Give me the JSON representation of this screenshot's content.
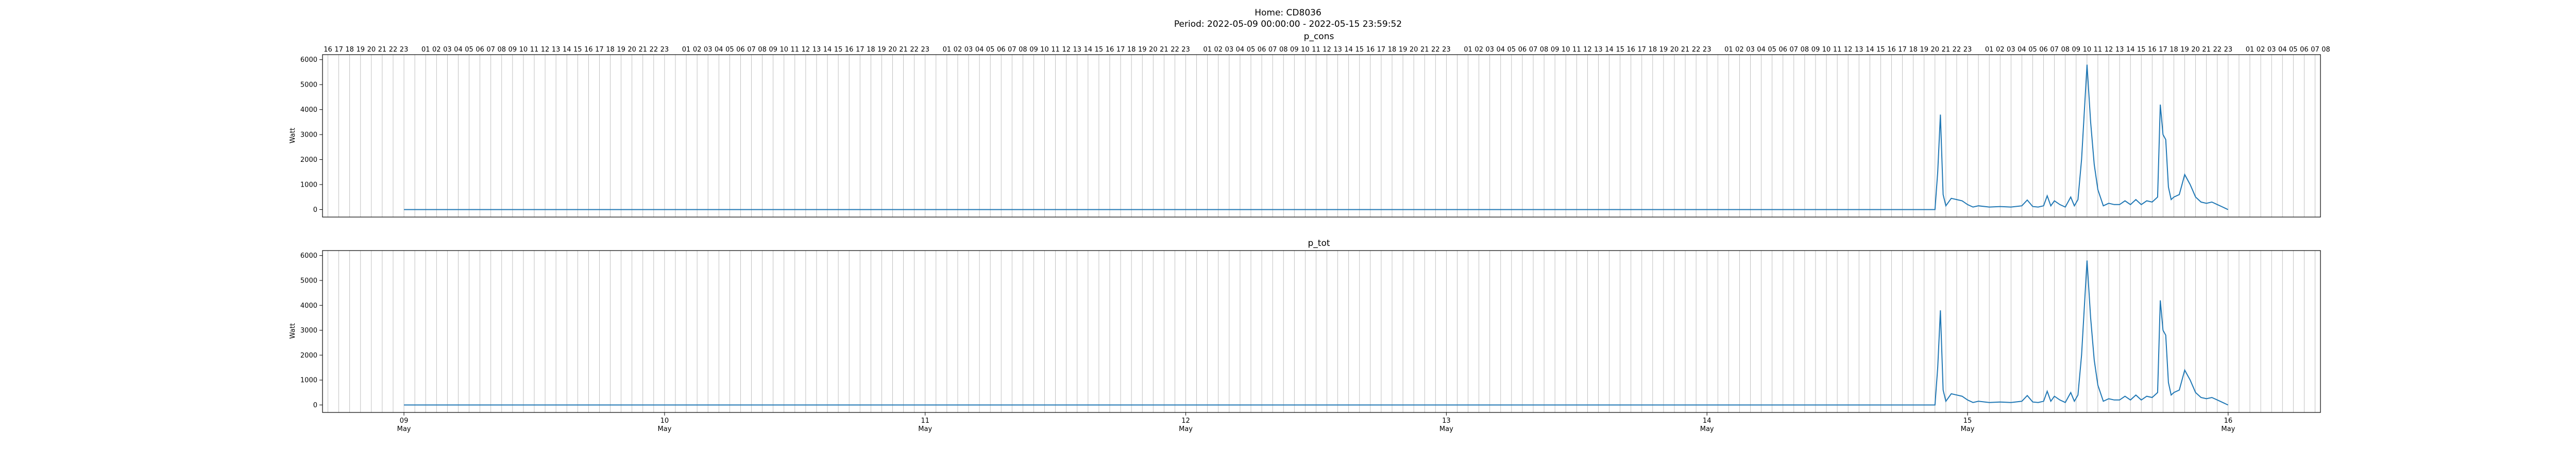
{
  "figure": {
    "title": "Home: CD8036",
    "subtitle": "Period: 2022-05-09 00:00:00 - 2022-05-15 23:59:52"
  },
  "colors": {
    "line": "#1f77b4",
    "grid": "#b0b0b0",
    "axis": "#000000"
  },
  "chart_data": [
    {
      "type": "line",
      "title": "p_cons",
      "ylabel": "Watt",
      "xlim": [
        "2022-05-08 16:30",
        "2022-05-16 08:30"
      ],
      "ylim": [
        -300,
        6200
      ],
      "yticks": [
        0,
        1000,
        2000,
        3000,
        4000,
        5000,
        6000
      ],
      "grid": "vertical-hourly",
      "top_hour_labels": [
        "16",
        "17",
        "18",
        "19",
        "20",
        "21",
        "22",
        "23",
        "",
        "01",
        "02",
        "03",
        "04",
        "05",
        "06",
        "07",
        "08",
        "09",
        "10",
        "11",
        "12",
        "13",
        "14",
        "15",
        "16",
        "17",
        "18",
        "19",
        "20",
        "21",
        "22",
        "23",
        "",
        "01",
        "02",
        "03",
        "04",
        "05",
        "06",
        "07",
        "08",
        "09",
        "10",
        "11",
        "12",
        "13",
        "14",
        "15",
        "16",
        "17",
        "18",
        "19",
        "20",
        "21",
        "22",
        "23",
        "",
        "01",
        "02",
        "03",
        "04",
        "05",
        "06",
        "07",
        "08",
        "09",
        "10",
        "11",
        "12",
        "13",
        "14",
        "15",
        "16",
        "17",
        "18",
        "19",
        "20",
        "21",
        "22",
        "23",
        "",
        "01",
        "02",
        "03",
        "04",
        "05",
        "06",
        "07",
        "08",
        "09",
        "10",
        "11",
        "12",
        "13",
        "14",
        "15",
        "16",
        "17",
        "18",
        "19",
        "20",
        "21",
        "22",
        "23",
        "",
        "01",
        "02",
        "03",
        "04",
        "05",
        "06",
        "07",
        "08",
        "09",
        "10",
        "11",
        "12",
        "13",
        "14",
        "15",
        "16",
        "17",
        "18",
        "19",
        "20",
        "21",
        "22",
        "23",
        "",
        "01",
        "02",
        "03",
        "04",
        "05",
        "06",
        "07",
        "08",
        "09",
        "10",
        "11",
        "12",
        "13",
        "14",
        "15",
        "16",
        "17",
        "18",
        "19",
        "20",
        "21",
        "22",
        "23",
        "",
        "01",
        "02",
        "03",
        "04",
        "05",
        "06",
        "07",
        "08",
        "09",
        "10",
        "11",
        "12",
        "13",
        "14",
        "15",
        "16",
        "17",
        "18",
        "19",
        "20",
        "21",
        "22",
        "23",
        "",
        "01",
        "02",
        "03",
        "04",
        "05",
        "06",
        "07",
        "08"
      ],
      "series": [
        {
          "x": [
            "2022-05-09 00:00",
            "2022-05-14 21:00",
            "2022-05-14 21:15",
            "2022-05-14 21:30",
            "2022-05-14 21:45",
            "2022-05-14 22:00",
            "2022-05-14 22:30",
            "2022-05-14 23:00",
            "2022-05-14 23:30",
            "2022-05-15 00:00",
            "2022-05-15 00:30",
            "2022-05-15 01:00",
            "2022-05-15 02:00",
            "2022-05-15 03:00",
            "2022-05-15 04:00",
            "2022-05-15 05:00",
            "2022-05-15 05:30",
            "2022-05-15 06:00",
            "2022-05-15 06:30",
            "2022-05-15 07:00",
            "2022-05-15 07:20",
            "2022-05-15 07:40",
            "2022-05-15 08:00",
            "2022-05-15 08:30",
            "2022-05-15 09:00",
            "2022-05-15 09:30",
            "2022-05-15 09:50",
            "2022-05-15 10:10",
            "2022-05-15 10:30",
            "2022-05-15 11:00",
            "2022-05-15 11:20",
            "2022-05-15 11:40",
            "2022-05-15 12:00",
            "2022-05-15 12:30",
            "2022-05-15 13:00",
            "2022-05-15 13:30",
            "2022-05-15 14:00",
            "2022-05-15 14:30",
            "2022-05-15 15:00",
            "2022-05-15 15:30",
            "2022-05-15 16:00",
            "2022-05-15 16:30",
            "2022-05-15 17:00",
            "2022-05-15 17:30",
            "2022-05-15 17:45",
            "2022-05-15 18:00",
            "2022-05-15 18:15",
            "2022-05-15 18:30",
            "2022-05-15 18:45",
            "2022-05-15 19:00",
            "2022-05-15 19:30",
            "2022-05-15 20:00",
            "2022-05-15 20:30",
            "2022-05-15 21:00",
            "2022-05-15 21:30",
            "2022-05-15 22:00",
            "2022-05-15 22:30",
            "2022-05-15 23:00",
            "2022-05-15 23:30",
            "2022-05-15 23:59"
          ],
          "y": [
            0,
            0,
            1500,
            3800,
            600,
            150,
            450,
            400,
            350,
            200,
            100,
            150,
            100,
            120,
            100,
            150,
            380,
            120,
            100,
            150,
            550,
            150,
            350,
            200,
            100,
            500,
            150,
            400,
            2000,
            5800,
            3500,
            1800,
            800,
            150,
            250,
            200,
            200,
            350,
            200,
            400,
            200,
            350,
            300,
            500,
            4200,
            3000,
            2800,
            900,
            400,
            500,
            600,
            1400,
            1000,
            500,
            300,
            250,
            300,
            200,
            100,
            0
          ]
        }
      ]
    },
    {
      "type": "line",
      "title": "p_tot",
      "ylabel": "Watt",
      "xlim": [
        "2022-05-08 16:30",
        "2022-05-16 08:30"
      ],
      "ylim": [
        -300,
        6200
      ],
      "yticks": [
        0,
        1000,
        2000,
        3000,
        4000,
        5000,
        6000
      ],
      "grid": "vertical-hourly",
      "x_date_ticks": [
        {
          "day": "09",
          "month": "May",
          "at": "2022-05-09 00:00"
        },
        {
          "day": "10",
          "month": "May",
          "at": "2022-05-10 00:00"
        },
        {
          "day": "11",
          "month": "May",
          "at": "2022-05-11 00:00"
        },
        {
          "day": "12",
          "month": "May",
          "at": "2022-05-12 00:00"
        },
        {
          "day": "13",
          "month": "May",
          "at": "2022-05-13 00:00"
        },
        {
          "day": "14",
          "month": "May",
          "at": "2022-05-14 00:00"
        },
        {
          "day": "15",
          "month": "May",
          "at": "2022-05-15 00:00"
        },
        {
          "day": "16",
          "month": "May",
          "at": "2022-05-16 00:00"
        }
      ],
      "series": [
        {
          "x": [
            "2022-05-09 00:00",
            "2022-05-14 21:00",
            "2022-05-14 21:15",
            "2022-05-14 21:30",
            "2022-05-14 21:45",
            "2022-05-14 22:00",
            "2022-05-14 22:30",
            "2022-05-14 23:00",
            "2022-05-14 23:30",
            "2022-05-15 00:00",
            "2022-05-15 00:30",
            "2022-05-15 01:00",
            "2022-05-15 02:00",
            "2022-05-15 03:00",
            "2022-05-15 04:00",
            "2022-05-15 05:00",
            "2022-05-15 05:30",
            "2022-05-15 06:00",
            "2022-05-15 06:30",
            "2022-05-15 07:00",
            "2022-05-15 07:20",
            "2022-05-15 07:40",
            "2022-05-15 08:00",
            "2022-05-15 08:30",
            "2022-05-15 09:00",
            "2022-05-15 09:30",
            "2022-05-15 09:50",
            "2022-05-15 10:10",
            "2022-05-15 10:30",
            "2022-05-15 11:00",
            "2022-05-15 11:20",
            "2022-05-15 11:40",
            "2022-05-15 12:00",
            "2022-05-15 12:30",
            "2022-05-15 13:00",
            "2022-05-15 13:30",
            "2022-05-15 14:00",
            "2022-05-15 14:30",
            "2022-05-15 15:00",
            "2022-05-15 15:30",
            "2022-05-15 16:00",
            "2022-05-15 16:30",
            "2022-05-15 17:00",
            "2022-05-15 17:30",
            "2022-05-15 17:45",
            "2022-05-15 18:00",
            "2022-05-15 18:15",
            "2022-05-15 18:30",
            "2022-05-15 18:45",
            "2022-05-15 19:00",
            "2022-05-15 19:30",
            "2022-05-15 20:00",
            "2022-05-15 20:30",
            "2022-05-15 21:00",
            "2022-05-15 21:30",
            "2022-05-15 22:00",
            "2022-05-15 22:30",
            "2022-05-15 23:00",
            "2022-05-15 23:30",
            "2022-05-15 23:59"
          ],
          "y": [
            0,
            0,
            1500,
            3800,
            600,
            150,
            450,
            400,
            350,
            200,
            100,
            150,
            100,
            120,
            100,
            150,
            380,
            120,
            100,
            150,
            550,
            150,
            350,
            200,
            100,
            500,
            150,
            400,
            2000,
            5800,
            3500,
            1800,
            800,
            150,
            250,
            200,
            200,
            350,
            200,
            400,
            200,
            350,
            300,
            500,
            4200,
            3000,
            2800,
            900,
            400,
            500,
            600,
            1400,
            1000,
            500,
            300,
            250,
            300,
            200,
            100,
            0
          ]
        }
      ]
    }
  ]
}
